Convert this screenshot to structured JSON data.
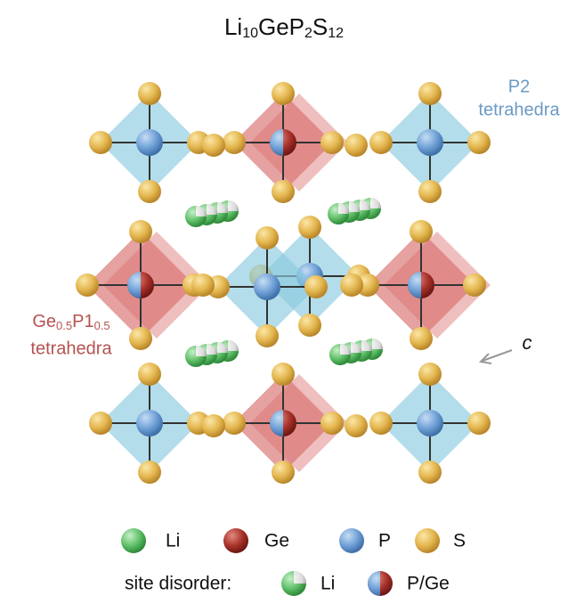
{
  "title": [
    "Li",
    "10",
    "GeP",
    "2",
    "S",
    "12"
  ],
  "labels": {
    "p2": [
      "P2",
      "tetrahedra"
    ],
    "gep": [
      "Ge",
      "0.5",
      "P1",
      "0.5"
    ],
    "gep_line2": "tetrahedra",
    "axis": "c"
  },
  "legend": {
    "row1": [
      "Li",
      "Ge",
      "P",
      "S"
    ],
    "site_disorder": "site disorder:",
    "row2": [
      "Li",
      "P/Ge"
    ]
  }
}
